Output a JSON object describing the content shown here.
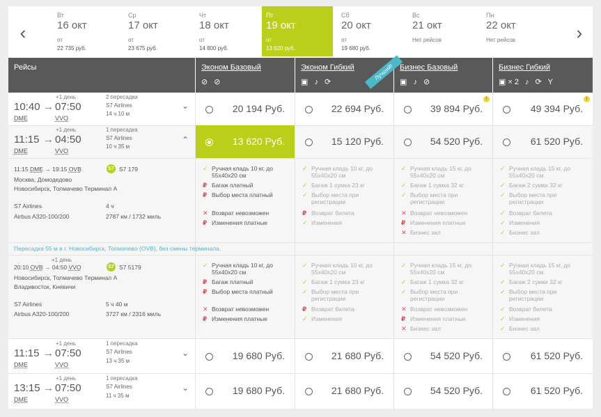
{
  "dates": {
    "prev_arrow": "‹",
    "next_arrow": "›",
    "days": [
      {
        "dow": "Вт",
        "date": "16 окт",
        "from": "от",
        "price": "22 735 руб."
      },
      {
        "dow": "Ср",
        "date": "17 окт",
        "from": "от",
        "price": "23 675 руб."
      },
      {
        "dow": "Чт",
        "date": "18 окт",
        "from": "от",
        "price": "14 800 руб."
      },
      {
        "dow": "Пт",
        "date": "19 окт",
        "from": "от",
        "price": "13 620 руб."
      },
      {
        "dow": "Сб",
        "date": "20 окт",
        "from": "от",
        "price": "19 680 руб."
      },
      {
        "dow": "Вс",
        "date": "21 окт",
        "from": "Нет рейсов",
        "price": ""
      },
      {
        "dow": "Пн",
        "date": "22 окт",
        "from": "Нет рейсов",
        "price": ""
      }
    ]
  },
  "header": {
    "flights": "Рейсы",
    "fares": [
      {
        "name": "Эконом Базовый",
        "icons": "⊘ ⊘"
      },
      {
        "name": "Эконом Гибкий",
        "icons": "▣ ♪ ⟳"
      },
      {
        "name": "Бизнес Базовый",
        "icons": "▣ ♪ ⊘"
      },
      {
        "name": "Бизнес Гибкий",
        "icons": "▣×2 ♪ ⟳ Y"
      }
    ],
    "ribbon": "Лучший!"
  },
  "flights": [
    {
      "dep_time": "10:40",
      "arr_time": "07:50",
      "dep_code": "DME",
      "arr_code": "VVO",
      "next_day": "+1 день",
      "stops": "2 пересадки",
      "airline": "S7 Airlines",
      "duration": "14 ч 10 м",
      "prices": [
        "20 194 Руб.",
        "22 694 Руб.",
        "39 894 Руб.",
        "49 394 Руб."
      ]
    },
    {
      "dep_time": "11:15",
      "arr_time": "04:50",
      "dep_code": "DME",
      "arr_code": "VVO",
      "next_day": "+1 день",
      "stops": "1 пересадка",
      "airline": "S7 Airlines",
      "duration": "10 ч 35 м",
      "prices": [
        "13 620 Руб.",
        "15 120 Руб.",
        "54 520 Руб.",
        "61 520 Руб."
      ]
    },
    {
      "dep_time": "11:15",
      "arr_time": "07:50",
      "dep_code": "DME",
      "arr_code": "VVO",
      "next_day": "+1 день",
      "stops": "1 пересадка",
      "airline": "S7 Airlines",
      "duration": "13 ч 35 м",
      "prices": [
        "19 680 Руб.",
        "21 680 Руб.",
        "54 520 Руб.",
        "61 520 Руб."
      ]
    },
    {
      "dep_time": "13:15",
      "arr_time": "07:50",
      "dep_code": "DME",
      "arr_code": "VVO",
      "next_day": "+1 день",
      "stops": "1 пересадка",
      "airline": "S7 Airlines",
      "duration": "11 ч 35 м",
      "prices": [
        "19 680 Руб.",
        "21 680 Руб.",
        "54 520 Руб.",
        "61 520 Руб."
      ]
    }
  ],
  "segments": [
    {
      "dep_time": "11:15",
      "dep_code": "DME",
      "arrow": "→",
      "arr_time": "19:15",
      "arr_code": "OVB",
      "logo": "S7",
      "flight_no": "S7 179",
      "next_day": "",
      "from_place": "Москва, Домодедово",
      "to_place": "Новосибирск, Толмачево Терминал А",
      "airline": "S7 Airlines",
      "duration": "4 ч",
      "aircraft": "Airbus A320-100/200",
      "distance": "2787 км / 1732 миль"
    },
    {
      "dep_time": "20:10",
      "dep_code": "OVB",
      "arrow": "→",
      "arr_time": "04:50",
      "arr_code": "VVO",
      "logo": "S7",
      "flight_no": "S7 5179",
      "next_day": "+1 день",
      "from_place": "Новосибирск, Толмачево Терминал А",
      "to_place": "Владивосток, Кневичи",
      "airline": "S7 Airlines",
      "duration": "5 ч 40 м",
      "aircraft": "Airbus A320-100/200",
      "distance": "3727 км / 2316 миль"
    }
  ],
  "transfer_note": "Пересадка 55 м в г. Новосибирск, Толмачево (OVB), без смены терминала.",
  "features": {
    "economy_basic": {
      "f1": "Ручная кладь 10 кг, до",
      "f1b": "55x40x20 см",
      "f2": "Багаж платный",
      "f3": "Выбор места платный",
      "f4": "Возврат невозможен",
      "f5": "Изменения платные"
    },
    "economy_flex": {
      "f1": "Ручная кладь 10 кг, до",
      "f1b": "55x40x20 см",
      "f2": "Багаж 1 сумка 23 кг",
      "f3": "Выбор места при",
      "f3b": "регистрации",
      "f4": "Возврат билета",
      "f5": "Изменения"
    },
    "business_basic": {
      "f1": "Ручная кладь 15 кг, до",
      "f1b": "55x40x20 см",
      "f2": "Багаж 1 сумка 32 кг",
      "f3": "Выбор места при",
      "f3b": "регистрации",
      "f4": "Возврат невозможен",
      "f5": "Изменения платные",
      "f6": "Бизнес зал"
    },
    "business_flex": {
      "f1": "Ручная кладь 15 кг, до",
      "f1b": "55x40x20 см",
      "f2": "Багаж 2 сумки 32 кг",
      "f3": "Выбор места при",
      "f3b": "регистрации",
      "f4": "Возврат билета",
      "f5": "Изменения",
      "f6": "Бизнес зал"
    }
  },
  "marks": {
    "yes": "✓",
    "pay": "₽",
    "no": "✕"
  },
  "warn_icon": "!",
  "chevron_down": "⌄",
  "chevron_up": "⌃"
}
